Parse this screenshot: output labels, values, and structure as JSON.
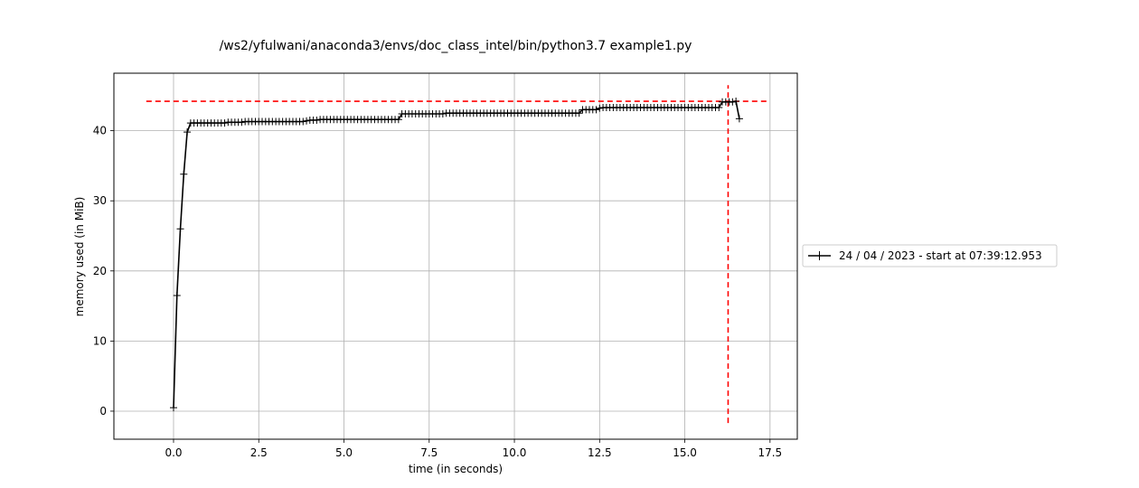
{
  "chart_data": {
    "type": "line",
    "title": "/ws2/yfulwani/anaconda3/envs/doc_class_intel/bin/python3.7 example1.py",
    "xlabel": "time (in seconds)",
    "ylabel": "memory used (in MiB)",
    "xlim": [
      -1.75,
      18.3
    ],
    "ylim": [
      -4.0,
      48.2
    ],
    "x_ticks": [
      0.0,
      2.5,
      5.0,
      7.5,
      10.0,
      12.5,
      15.0,
      17.5
    ],
    "x_tick_labels": [
      "0.0",
      "2.5",
      "5.0",
      "7.5",
      "10.0",
      "12.5",
      "15.0",
      "17.5"
    ],
    "y_ticks": [
      0,
      10,
      20,
      30,
      40
    ],
    "y_tick_labels": [
      "0",
      "10",
      "20",
      "30",
      "40"
    ],
    "grid": true,
    "legend_position": "right",
    "series": [
      {
        "name": "24 / 04 / 2023 - start at 07:39:12.953",
        "color": "#000000",
        "marker": "plus",
        "x": [
          0.0,
          0.1,
          0.2,
          0.3,
          0.4,
          0.5,
          0.6,
          0.7,
          0.8,
          0.9,
          1.0,
          1.1,
          1.2,
          1.3,
          1.4,
          1.5,
          1.6,
          1.7,
          1.8,
          1.9,
          2.0,
          2.1,
          2.2,
          2.3,
          2.4,
          2.5,
          2.6,
          2.7,
          2.8,
          2.9,
          3.0,
          3.1,
          3.2,
          3.3,
          3.4,
          3.5,
          3.6,
          3.7,
          3.8,
          3.9,
          4.0,
          4.1,
          4.2,
          4.3,
          4.4,
          4.5,
          4.6,
          4.7,
          4.8,
          4.9,
          5.0,
          5.1,
          5.2,
          5.3,
          5.4,
          5.5,
          5.6,
          5.7,
          5.8,
          5.9,
          6.0,
          6.1,
          6.2,
          6.3,
          6.4,
          6.5,
          6.6,
          6.7,
          6.8,
          6.9,
          7.0,
          7.1,
          7.2,
          7.3,
          7.4,
          7.5,
          7.6,
          7.7,
          7.8,
          7.9,
          8.0,
          8.1,
          8.2,
          8.3,
          8.4,
          8.5,
          8.6,
          8.7,
          8.8,
          8.9,
          9.0,
          9.1,
          9.2,
          9.3,
          9.4,
          9.5,
          9.6,
          9.7,
          9.8,
          9.9,
          10.0,
          10.1,
          10.2,
          10.3,
          10.4,
          10.5,
          10.6,
          10.7,
          10.8,
          10.9,
          11.0,
          11.1,
          11.2,
          11.3,
          11.4,
          11.5,
          11.6,
          11.7,
          11.8,
          11.9,
          12.0,
          12.1,
          12.2,
          12.3,
          12.4,
          12.5,
          12.6,
          12.7,
          12.8,
          12.9,
          13.0,
          13.1,
          13.2,
          13.3,
          13.4,
          13.5,
          13.6,
          13.7,
          13.8,
          13.9,
          14.0,
          14.1,
          14.2,
          14.3,
          14.4,
          14.5,
          14.6,
          14.7,
          14.8,
          14.9,
          15.0,
          15.1,
          15.2,
          15.3,
          15.4,
          15.5,
          15.6,
          15.7,
          15.8,
          15.9,
          16.0,
          16.1,
          16.2,
          16.3,
          16.4,
          16.5,
          16.6
        ],
        "y": [
          0.5,
          16.5,
          26.0,
          33.8,
          39.8,
          41.1,
          41.1,
          41.1,
          41.1,
          41.1,
          41.1,
          41.1,
          41.1,
          41.1,
          41.1,
          41.1,
          41.2,
          41.2,
          41.2,
          41.2,
          41.2,
          41.3,
          41.3,
          41.3,
          41.3,
          41.3,
          41.3,
          41.3,
          41.3,
          41.3,
          41.3,
          41.3,
          41.3,
          41.3,
          41.3,
          41.3,
          41.3,
          41.3,
          41.3,
          41.4,
          41.5,
          41.5,
          41.5,
          41.6,
          41.6,
          41.6,
          41.6,
          41.6,
          41.6,
          41.6,
          41.6,
          41.6,
          41.6,
          41.6,
          41.6,
          41.6,
          41.6,
          41.6,
          41.6,
          41.6,
          41.6,
          41.6,
          41.6,
          41.6,
          41.6,
          41.6,
          41.6,
          42.4,
          42.4,
          42.4,
          42.4,
          42.4,
          42.4,
          42.4,
          42.4,
          42.4,
          42.4,
          42.4,
          42.4,
          42.4,
          42.5,
          42.5,
          42.5,
          42.5,
          42.5,
          42.5,
          42.5,
          42.5,
          42.5,
          42.5,
          42.5,
          42.5,
          42.5,
          42.5,
          42.5,
          42.5,
          42.5,
          42.5,
          42.5,
          42.5,
          42.5,
          42.5,
          42.5,
          42.5,
          42.5,
          42.5,
          42.5,
          42.5,
          42.5,
          42.5,
          42.5,
          42.5,
          42.5,
          42.5,
          42.5,
          42.5,
          42.5,
          42.5,
          42.5,
          42.5,
          43.0,
          43.0,
          43.0,
          43.0,
          43.0,
          43.2,
          43.3,
          43.3,
          43.3,
          43.3,
          43.3,
          43.3,
          43.3,
          43.3,
          43.3,
          43.3,
          43.3,
          43.3,
          43.3,
          43.3,
          43.3,
          43.3,
          43.3,
          43.3,
          43.3,
          43.3,
          43.3,
          43.3,
          43.3,
          43.3,
          43.3,
          43.3,
          43.3,
          43.3,
          43.3,
          43.3,
          43.3,
          43.3,
          43.3,
          43.3,
          43.3,
          44.1,
          44.1,
          44.1,
          44.1,
          44.2,
          41.7
        ]
      }
    ],
    "reference_lines": [
      {
        "orientation": "horizontal",
        "value": 44.2,
        "from": -0.8,
        "to": 17.4,
        "color": "#ff0000",
        "style": "dashed"
      },
      {
        "orientation": "vertical",
        "value": 16.27,
        "from": -1.7,
        "to": 46.5,
        "color": "#ff0000",
        "style": "dashed"
      }
    ]
  }
}
